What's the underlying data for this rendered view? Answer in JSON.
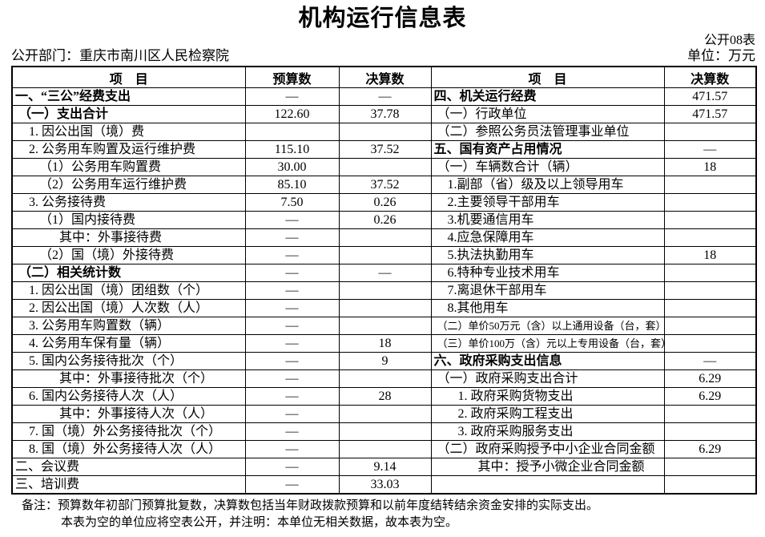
{
  "title": "机构运行信息表",
  "form_code": "公开08表",
  "unit_label": "单位：万元",
  "department_label": "公开部门：重庆市南川区人民检察院",
  "table": {
    "columns": [
      "项　目",
      "预算数",
      "决算数",
      "项　目",
      "决算数"
    ],
    "left_rows": [
      {
        "label": "一、“三公”经费支出",
        "indent": 0,
        "bold": true,
        "budget": "—",
        "final": "—"
      },
      {
        "label": "（一）支出合计",
        "indent": 1,
        "bold": true,
        "budget": "122.60",
        "final": "37.78"
      },
      {
        "label": "1. 因公出国（境）费",
        "indent": 2,
        "bold": false,
        "budget": "",
        "final": ""
      },
      {
        "label": "2. 公务用车购置及运行维护费",
        "indent": 2,
        "bold": false,
        "budget": "115.10",
        "final": "37.52"
      },
      {
        "label": "（1）公务用车购置费",
        "indent": 3,
        "bold": false,
        "budget": "30.00",
        "final": ""
      },
      {
        "label": "（2）公务用车运行维护费",
        "indent": 3,
        "bold": false,
        "budget": "85.10",
        "final": "37.52"
      },
      {
        "label": "3. 公务接待费",
        "indent": 2,
        "bold": false,
        "budget": "7.50",
        "final": "0.26"
      },
      {
        "label": "（1）国内接待费",
        "indent": 3,
        "bold": false,
        "budget": "—",
        "final": "0.26"
      },
      {
        "label": "其中：外事接待费",
        "indent": 4,
        "bold": false,
        "budget": "—",
        "final": ""
      },
      {
        "label": "（2）国（境）外接待费",
        "indent": 3,
        "bold": false,
        "budget": "—",
        "final": ""
      },
      {
        "label": "（二）相关统计数",
        "indent": 1,
        "bold": true,
        "budget": "—",
        "final": "—"
      },
      {
        "label": "1. 因公出国（境）团组数（个）",
        "indent": 2,
        "bold": false,
        "budget": "—",
        "final": ""
      },
      {
        "label": "2. 因公出国（境）人次数（人）",
        "indent": 2,
        "bold": false,
        "budget": "—",
        "final": ""
      },
      {
        "label": "3. 公务用车购置数（辆）",
        "indent": 2,
        "bold": false,
        "budget": "—",
        "final": ""
      },
      {
        "label": "4. 公务用车保有量（辆）",
        "indent": 2,
        "bold": false,
        "budget": "—",
        "final": "18"
      },
      {
        "label": "5. 国内公务接待批次（个）",
        "indent": 2,
        "bold": false,
        "budget": "—",
        "final": "9"
      },
      {
        "label": "其中：外事接待批次（个）",
        "indent": 4,
        "bold": false,
        "budget": "—",
        "final": ""
      },
      {
        "label": "6. 国内公务接待人次（人）",
        "indent": 2,
        "bold": false,
        "budget": "—",
        "final": "28"
      },
      {
        "label": "其中：外事接待人次（人）",
        "indent": 4,
        "bold": false,
        "budget": "—",
        "final": ""
      },
      {
        "label": "7. 国（境）外公务接待批次（个）",
        "indent": 2,
        "bold": false,
        "budget": "—",
        "final": ""
      },
      {
        "label": "8. 国（境）外公务接待人次（人）",
        "indent": 2,
        "bold": false,
        "budget": "—",
        "final": ""
      },
      {
        "label": "二、会议费",
        "indent": 0,
        "bold": false,
        "budget": "—",
        "final": "9.14"
      },
      {
        "label": "三、培训费",
        "indent": 0,
        "bold": false,
        "budget": "—",
        "final": "33.03"
      }
    ],
    "right_rows": [
      {
        "label": "四、机关运行经费",
        "indent": 0,
        "bold": true,
        "small": false,
        "final": "471.57"
      },
      {
        "label": "（一）行政单位",
        "indent": 1,
        "bold": false,
        "small": false,
        "final": "471.57"
      },
      {
        "label": "（二）参照公务员法管理事业单位",
        "indent": 1,
        "bold": false,
        "small": false,
        "final": ""
      },
      {
        "label": "五、国有资产占用情况",
        "indent": 0,
        "bold": true,
        "small": false,
        "final": "—"
      },
      {
        "label": "（一）车辆数合计（辆）",
        "indent": 1,
        "bold": false,
        "small": false,
        "final": "18"
      },
      {
        "label": "1.副部（省）级及以上领导用车",
        "indent": 2,
        "bold": false,
        "small": false,
        "final": ""
      },
      {
        "label": "2.主要领导干部用车",
        "indent": 2,
        "bold": false,
        "small": false,
        "final": ""
      },
      {
        "label": "3.机要通信用车",
        "indent": 2,
        "bold": false,
        "small": false,
        "final": ""
      },
      {
        "label": "4.应急保障用车",
        "indent": 2,
        "bold": false,
        "small": false,
        "final": ""
      },
      {
        "label": "5.执法执勤用车",
        "indent": 2,
        "bold": false,
        "small": false,
        "final": "18"
      },
      {
        "label": "6.特种专业技术用车",
        "indent": 2,
        "bold": false,
        "small": false,
        "final": ""
      },
      {
        "label": "7.离退休干部用车",
        "indent": 2,
        "bold": false,
        "small": false,
        "final": ""
      },
      {
        "label": "8.其他用车",
        "indent": 2,
        "bold": false,
        "small": false,
        "final": ""
      },
      {
        "label": "（二）单价50万元（含）以上通用设备（台，套）",
        "indent": 1,
        "bold": false,
        "small": true,
        "final": ""
      },
      {
        "label": "（三）单价100万（含）元以上专用设备（台，套）",
        "indent": 1,
        "bold": false,
        "small": true,
        "final": ""
      },
      {
        "label": "六、政府采购支出信息",
        "indent": 0,
        "bold": true,
        "small": false,
        "final": "—"
      },
      {
        "label": "（一）政府采购支出合计",
        "indent": 1,
        "bold": false,
        "small": false,
        "final": "6.29"
      },
      {
        "label": "1. 政府采购货物支出",
        "indent": 3,
        "bold": false,
        "small": false,
        "final": "6.29"
      },
      {
        "label": "2. 政府采购工程支出",
        "indent": 3,
        "bold": false,
        "small": false,
        "final": ""
      },
      {
        "label": "3. 政府采购服务支出",
        "indent": 3,
        "bold": false,
        "small": false,
        "final": ""
      },
      {
        "label": "（二）政府采购授予中小企业合同金额",
        "indent": 1,
        "bold": false,
        "small": false,
        "final": "6.29"
      },
      {
        "label": "其中：授予小微企业合同金额",
        "indent": 4,
        "bold": false,
        "small": false,
        "final": ""
      },
      {
        "label": "",
        "indent": 0,
        "bold": false,
        "small": false,
        "final": ""
      }
    ]
  },
  "notes": {
    "line1": "备注：预算数年初部门预算批复数，决算数包括当年财政拨款预算和以前年度结转结余资金安排的实际支出。",
    "line2": "本表为空的单位应将空表公开，并注明：本单位无相关数据，故本表为空。"
  }
}
